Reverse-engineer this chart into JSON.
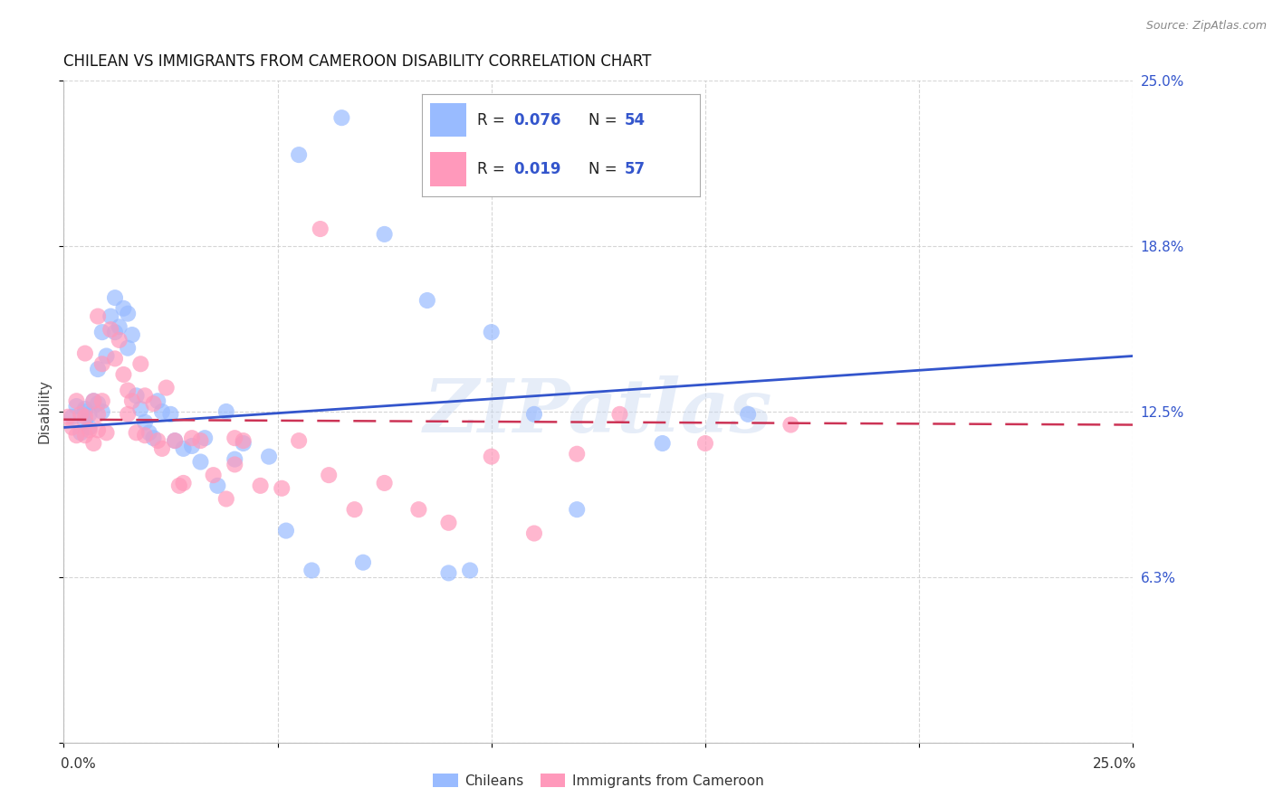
{
  "title": "CHILEAN VS IMMIGRANTS FROM CAMEROON DISABILITY CORRELATION CHART",
  "source": "Source: ZipAtlas.com",
  "ylabel": "Disability",
  "watermark": "ZIPatlas",
  "xlim": [
    0.0,
    0.25
  ],
  "ylim": [
    0.0,
    0.25
  ],
  "ytick_vals": [
    0.0,
    0.0625,
    0.125,
    0.1875,
    0.25
  ],
  "ytick_labels": [
    "",
    "6.3%",
    "12.5%",
    "18.8%",
    "25.0%"
  ],
  "blue_color": "#99bbff",
  "pink_color": "#ff99bb",
  "blue_line_color": "#3355cc",
  "pink_line_color": "#cc3355",
  "legend_R1": "0.076",
  "legend_N1": "54",
  "legend_R2": "0.019",
  "legend_N2": "57",
  "legend_text_color": "#222222",
  "legend_value_color": "#3355cc",
  "legend_value_color2": "#cc3355",
  "grid_color": "#cccccc",
  "background_color": "#ffffff",
  "title_fontsize": 12,
  "source_fontsize": 9,
  "blue_line_x": [
    0.0,
    0.25
  ],
  "blue_line_y": [
    0.119,
    0.146
  ],
  "pink_line_x": [
    0.0,
    0.25
  ],
  "pink_line_y": [
    0.122,
    0.12
  ],
  "chileans_x": [
    0.002,
    0.003,
    0.004,
    0.005,
    0.005,
    0.006,
    0.006,
    0.007,
    0.008,
    0.009,
    0.009,
    0.01,
    0.011,
    0.012,
    0.012,
    0.013,
    0.014,
    0.015,
    0.015,
    0.016,
    0.017,
    0.018,
    0.019,
    0.02,
    0.021,
    0.022,
    0.023,
    0.025,
    0.026,
    0.028,
    0.03,
    0.032,
    0.033,
    0.036,
    0.04,
    0.055,
    0.065,
    0.075,
    0.085,
    0.1,
    0.11,
    0.12,
    0.14,
    0.16,
    0.038,
    0.042,
    0.048,
    0.052,
    0.058,
    0.07,
    0.09,
    0.095,
    0.005,
    0.008
  ],
  "chileans_y": [
    0.123,
    0.127,
    0.117,
    0.121,
    0.126,
    0.119,
    0.124,
    0.129,
    0.141,
    0.125,
    0.155,
    0.146,
    0.161,
    0.168,
    0.155,
    0.157,
    0.164,
    0.162,
    0.149,
    0.154,
    0.131,
    0.126,
    0.121,
    0.117,
    0.115,
    0.129,
    0.125,
    0.124,
    0.114,
    0.111,
    0.112,
    0.106,
    0.115,
    0.097,
    0.107,
    0.222,
    0.236,
    0.192,
    0.167,
    0.155,
    0.124,
    0.088,
    0.113,
    0.124,
    0.125,
    0.113,
    0.108,
    0.08,
    0.065,
    0.068,
    0.064,
    0.065,
    0.125,
    0.128
  ],
  "cameroon_x": [
    0.001,
    0.002,
    0.003,
    0.003,
    0.004,
    0.005,
    0.005,
    0.006,
    0.007,
    0.007,
    0.008,
    0.008,
    0.009,
    0.009,
    0.01,
    0.011,
    0.012,
    0.013,
    0.014,
    0.015,
    0.015,
    0.016,
    0.017,
    0.018,
    0.019,
    0.019,
    0.021,
    0.022,
    0.023,
    0.024,
    0.026,
    0.027,
    0.028,
    0.03,
    0.032,
    0.035,
    0.038,
    0.04,
    0.042,
    0.046,
    0.051,
    0.055,
    0.062,
    0.068,
    0.075,
    0.083,
    0.09,
    0.1,
    0.11,
    0.12,
    0.13,
    0.15,
    0.17,
    0.06,
    0.04,
    0.008,
    0.005
  ],
  "cameroon_y": [
    0.123,
    0.119,
    0.116,
    0.129,
    0.124,
    0.116,
    0.123,
    0.118,
    0.113,
    0.129,
    0.124,
    0.118,
    0.143,
    0.129,
    0.117,
    0.156,
    0.145,
    0.152,
    0.139,
    0.133,
    0.124,
    0.129,
    0.117,
    0.143,
    0.116,
    0.131,
    0.128,
    0.114,
    0.111,
    0.134,
    0.114,
    0.097,
    0.098,
    0.115,
    0.114,
    0.101,
    0.092,
    0.105,
    0.114,
    0.097,
    0.096,
    0.114,
    0.101,
    0.088,
    0.098,
    0.088,
    0.083,
    0.108,
    0.079,
    0.109,
    0.124,
    0.113,
    0.12,
    0.194,
    0.115,
    0.161,
    0.147
  ]
}
